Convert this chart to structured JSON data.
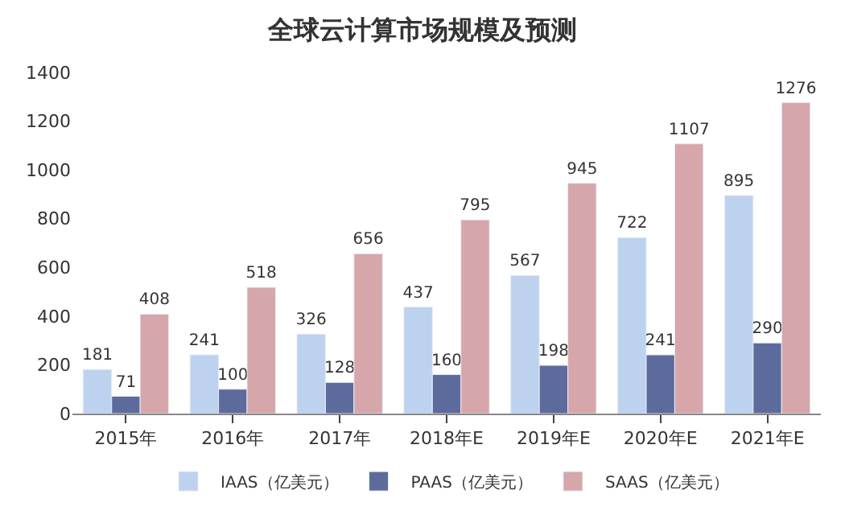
{
  "chart_data": {
    "type": "bar",
    "title": "全球云计算市场规模及预测",
    "categories": [
      "2015年",
      "2016年",
      "2017年",
      "2018年E",
      "2019年E",
      "2020年E",
      "2021年E"
    ],
    "series": [
      {
        "name": "IAAS（亿美元）",
        "color": "#bcd2ee",
        "values": [
          181,
          241,
          326,
          437,
          567,
          722,
          895
        ]
      },
      {
        "name": "PAAS（亿美元）",
        "color": "#5d6b9c",
        "values": [
          71,
          100,
          128,
          160,
          198,
          241,
          290
        ]
      },
      {
        "name": "SAAS（亿美元）",
        "color": "#d6a6aa",
        "values": [
          408,
          518,
          656,
          795,
          945,
          1107,
          1276
        ]
      }
    ],
    "ylim": [
      0,
      1400
    ],
    "yticks": [
      0,
      200,
      400,
      600,
      800,
      1000,
      1200,
      1400
    ],
    "data_labels": true,
    "legend": "bottom"
  }
}
